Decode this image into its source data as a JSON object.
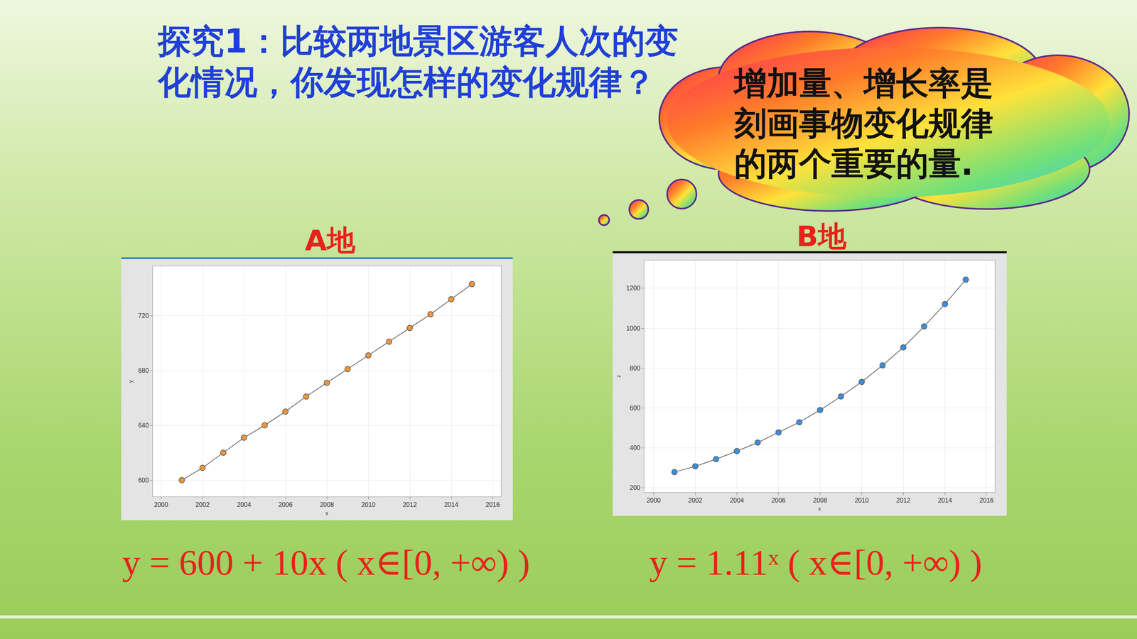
{
  "heading": "探究1：比较两地景区游客人次的变化情况，你发现怎样的变化规律？",
  "bubble": "增加量、增长率是刻画事物变化规律的两个重要的量.",
  "chart_data": [
    {
      "type": "line",
      "title": "A地",
      "x_label": "x",
      "y_label": "y",
      "x": [
        2001,
        2002,
        2003,
        2004,
        2005,
        2006,
        2007,
        2008,
        2009,
        2010,
        2011,
        2012,
        2013,
        2014,
        2015
      ],
      "values": [
        600,
        609,
        620,
        631,
        640,
        650,
        661,
        671,
        681,
        691,
        701,
        711,
        721,
        732,
        743
      ],
      "color": "#f0963a",
      "marker": "circle",
      "xlim": [
        1999.6,
        2016.4
      ],
      "xticks": [
        2000,
        2002,
        2004,
        2006,
        2008,
        2010,
        2012,
        2014,
        2016
      ],
      "ylim": [
        588,
        756
      ],
      "yticks": [
        600,
        640,
        680,
        720
      ],
      "grid": true,
      "annotations": [
        "y = 600 + 10x ( x∈[0, +∞) )"
      ]
    },
    {
      "type": "line",
      "title": "B地",
      "x_label": "x",
      "y_label": "z",
      "x": [
        2001,
        2002,
        2003,
        2004,
        2005,
        2006,
        2007,
        2008,
        2009,
        2010,
        2011,
        2012,
        2013,
        2014,
        2015
      ],
      "values": [
        279,
        308,
        344,
        384,
        427,
        478,
        529,
        590,
        658,
        731,
        814,
        904,
        1009,
        1121,
        1243
      ],
      "color": "#3a8fdc",
      "marker": "circle",
      "xlim": [
        1999.55,
        2016.4
      ],
      "xticks": [
        2000,
        2002,
        2004,
        2006,
        2008,
        2010,
        2012,
        2014,
        2016
      ],
      "ylim": [
        178,
        1340
      ],
      "yticks": [
        200,
        400,
        600,
        800,
        1000,
        1200
      ],
      "grid": true,
      "annotations": [
        "y = 1.11ˣ ( x∈[0, +∞) )"
      ]
    }
  ]
}
